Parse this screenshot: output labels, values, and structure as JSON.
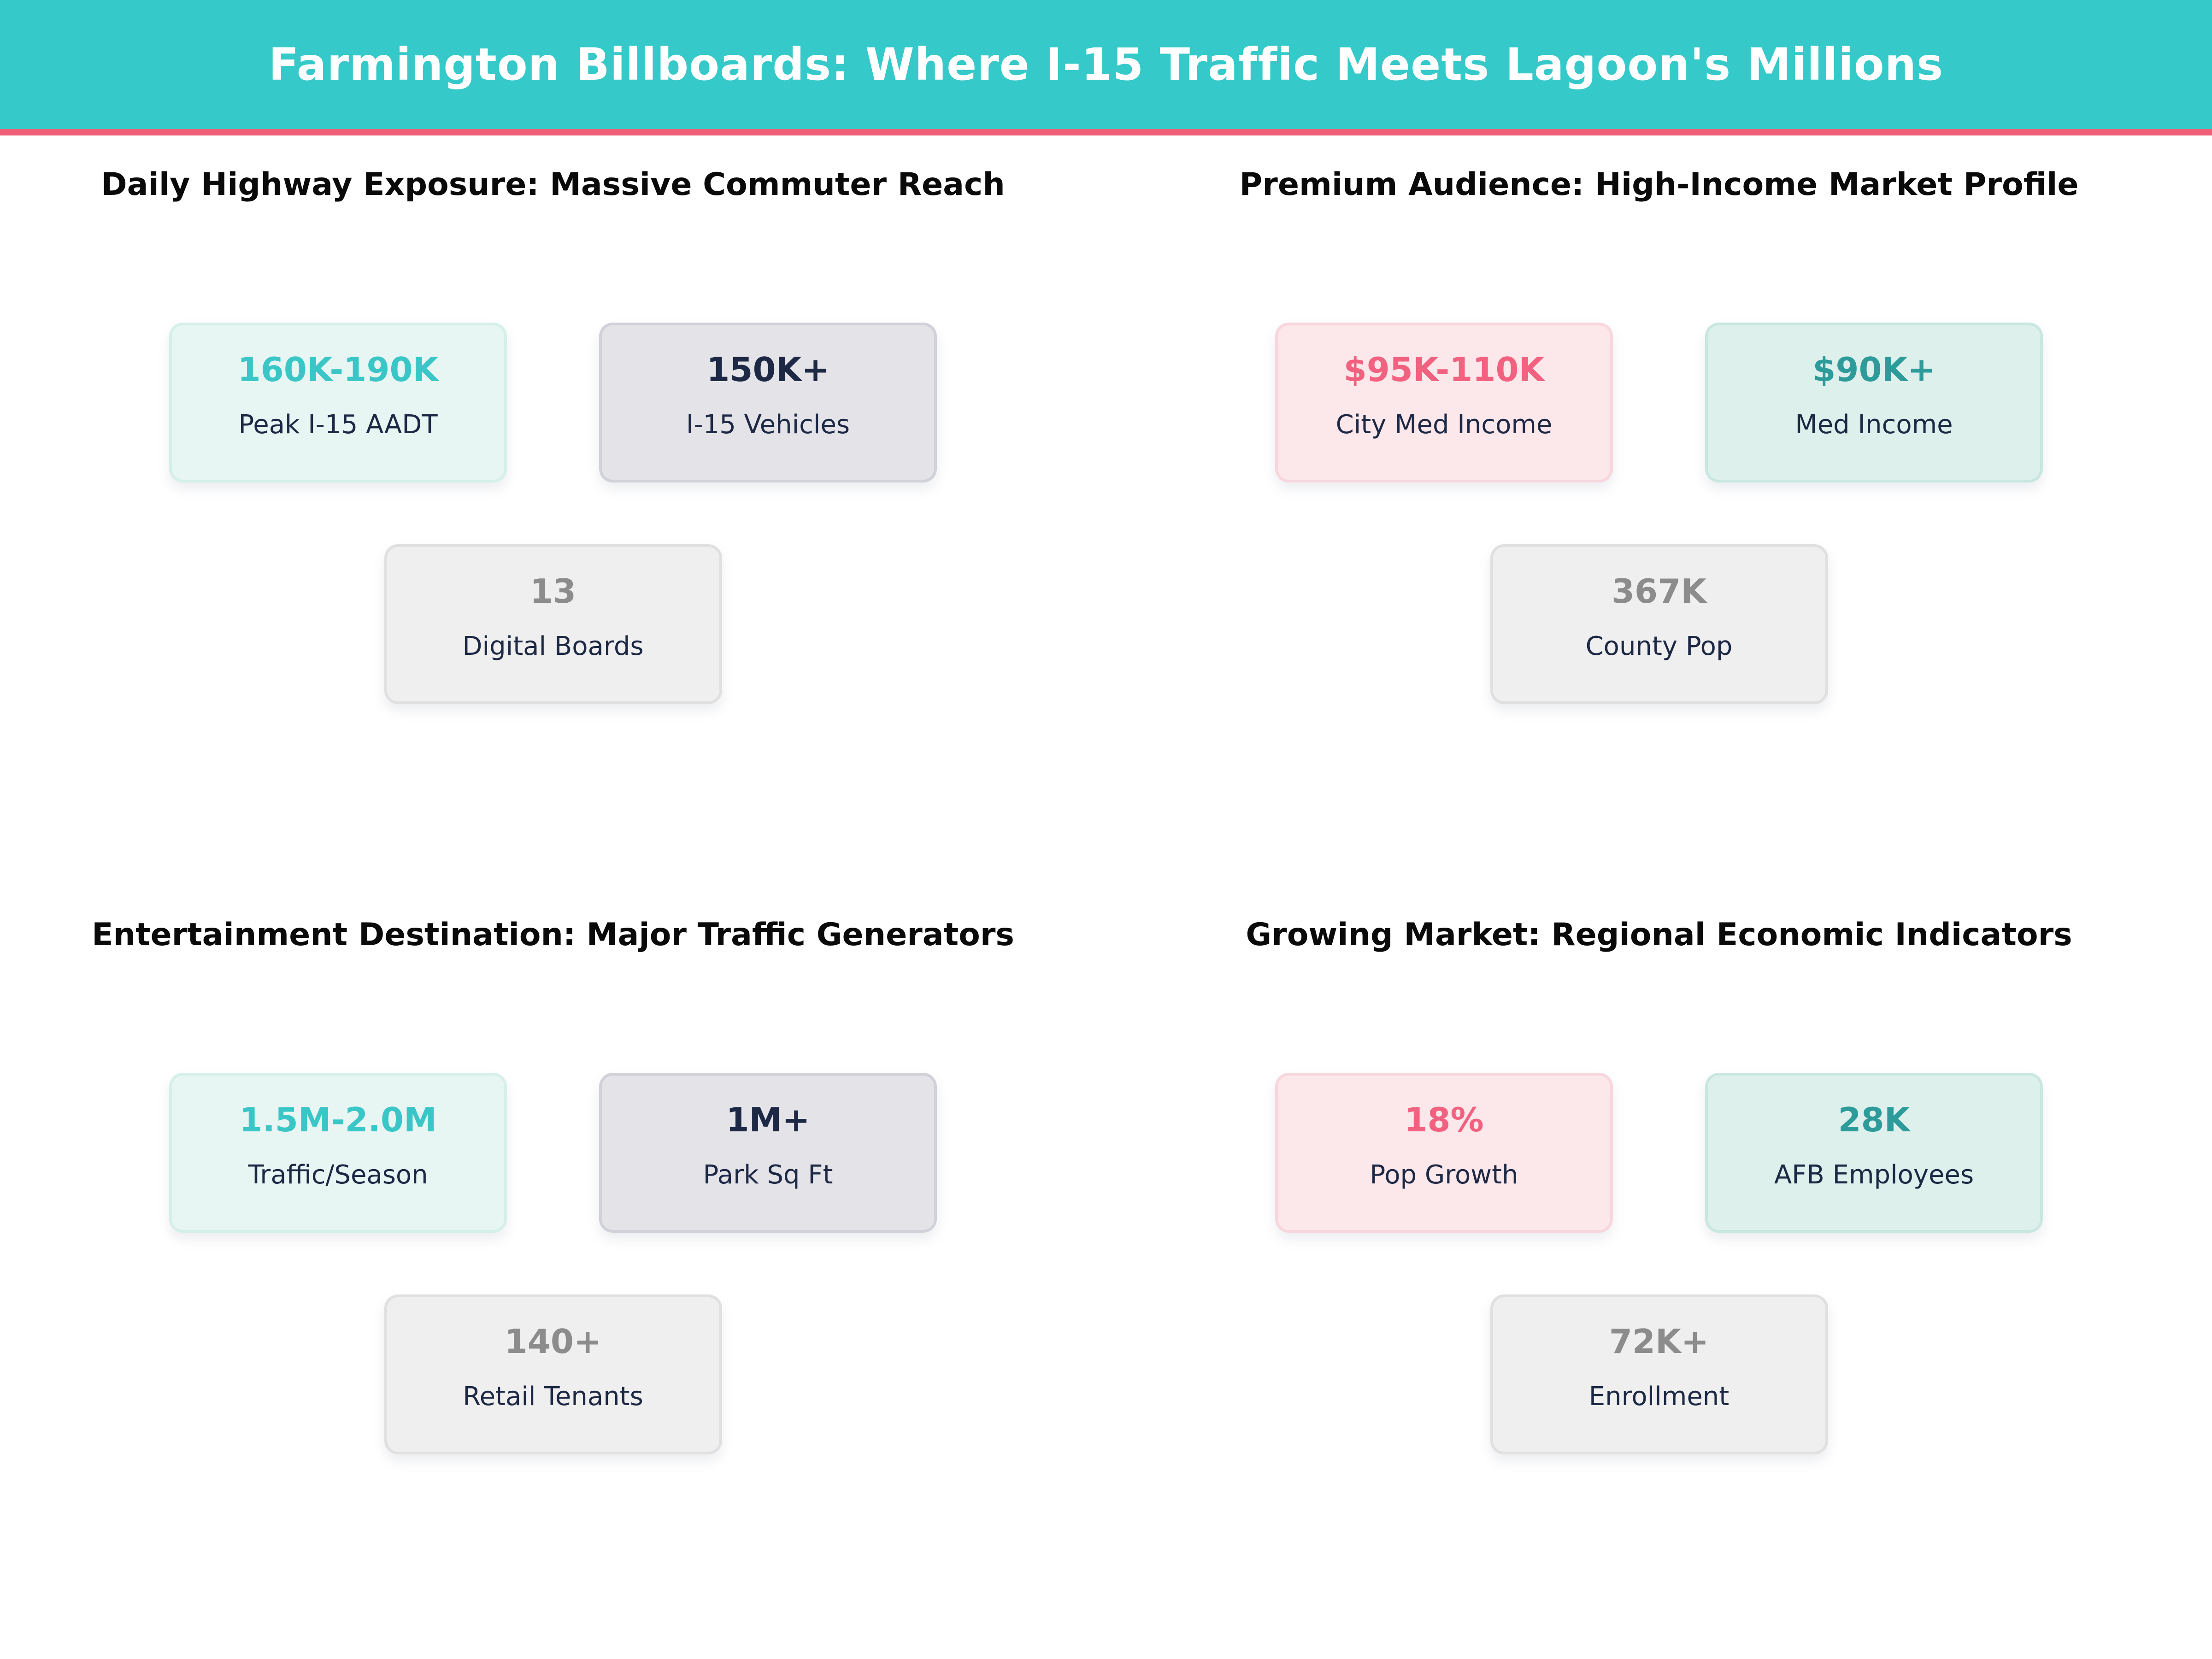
{
  "header": {
    "title": "Farmington Billboards: Where I-15 Traffic Meets Lagoon's Millions"
  },
  "quadrants": [
    {
      "title": "Daily Highway Exposure: Massive Commuter Reach",
      "cards": [
        {
          "value": "160K-190K",
          "label": "Peak I-15 AADT",
          "theme": "mint"
        },
        {
          "value": "150K+",
          "label": "I-15 Vehicles",
          "theme": "slate"
        },
        {
          "value": "13",
          "label": "Digital Boards",
          "theme": "neutral"
        }
      ]
    },
    {
      "title": "Premium Audience: High-Income Market Profile",
      "cards": [
        {
          "value": "$95K-110K",
          "label": "City Med Income",
          "theme": "pink"
        },
        {
          "value": "$90K+",
          "label": "Med Income",
          "theme": "teal"
        },
        {
          "value": "367K",
          "label": "County Pop",
          "theme": "neutral"
        }
      ]
    },
    {
      "title": "Entertainment Destination: Major Traffic Generators",
      "cards": [
        {
          "value": "1.5M-2.0M",
          "label": "Traffic/Season",
          "theme": "mint"
        },
        {
          "value": "1M+",
          "label": "Park Sq Ft",
          "theme": "slate"
        },
        {
          "value": "140+",
          "label": "Retail Tenants",
          "theme": "neutral"
        }
      ]
    },
    {
      "title": "Growing Market: Regional Economic Indicators",
      "cards": [
        {
          "value": "18%",
          "label": "Pop Growth",
          "theme": "pink"
        },
        {
          "value": "28K",
          "label": "AFB Employees",
          "theme": "teal"
        },
        {
          "value": "72K+",
          "label": "Enrollment",
          "theme": "neutral"
        }
      ]
    }
  ],
  "palette": {
    "header_background": "#36c9c9",
    "header_accent_underline": "#ef5f78",
    "header_text": "#ffffff",
    "turquoise_value": "#3ac6c6",
    "navy_value": "#1d2845",
    "pink_value": "#f2617f",
    "teal_value": "#2e9b9b",
    "gray_value": "#8c8c8c",
    "label_text": "#1d2845",
    "mint_card_bg": "#e7f6f3",
    "slate_card_bg": "#e3e3e8",
    "pink_card_bg": "#fce7eb",
    "teal_card_bg": "#def0ec",
    "neutral_card_bg": "#efefef"
  },
  "chart_data": [
    {
      "type": "table",
      "title": "Daily Highway Exposure: Massive Commuter Reach",
      "rows": [
        [
          "Peak I-15 AADT",
          "160K-190K"
        ],
        [
          "I-15 Vehicles",
          "150K+"
        ],
        [
          "Digital Boards",
          "13"
        ]
      ]
    },
    {
      "type": "table",
      "title": "Premium Audience: High-Income Market Profile",
      "rows": [
        [
          "City Med Income",
          "$95K-110K"
        ],
        [
          "Med Income",
          "$90K+"
        ],
        [
          "County Pop",
          "367K"
        ]
      ]
    },
    {
      "type": "table",
      "title": "Entertainment Destination: Major Traffic Generators",
      "rows": [
        [
          "Traffic/Season",
          "1.5M-2.0M"
        ],
        [
          "Park Sq Ft",
          "1M+"
        ],
        [
          "Retail Tenants",
          "140+"
        ]
      ]
    },
    {
      "type": "table",
      "title": "Growing Market: Regional Economic Indicators",
      "rows": [
        [
          "Pop Growth",
          "18%"
        ],
        [
          "AFB Employees",
          "28K"
        ],
        [
          "Enrollment",
          "72K+"
        ]
      ]
    }
  ]
}
